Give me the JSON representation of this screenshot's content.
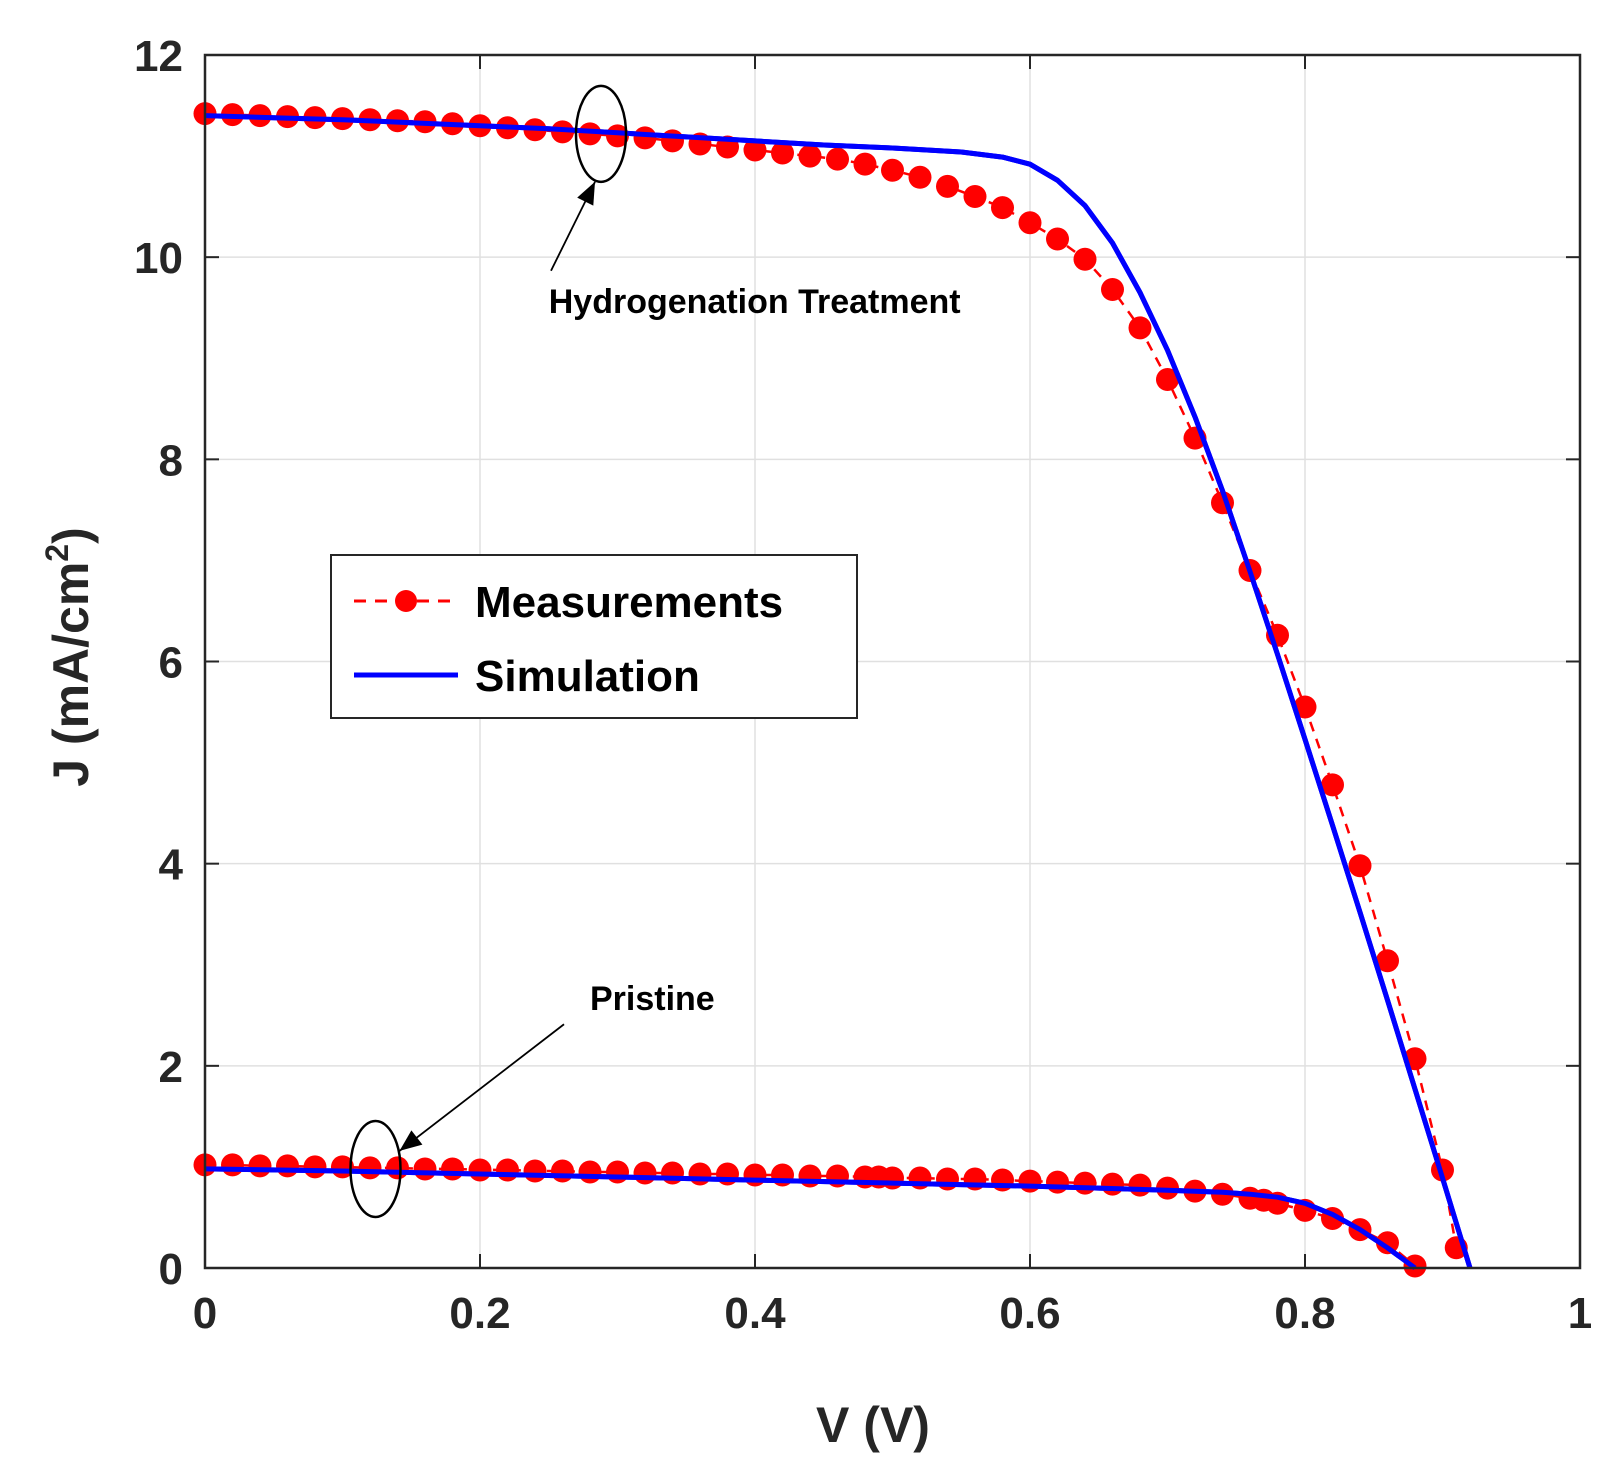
{
  "chart_data": {
    "type": "line",
    "title": "",
    "xlabel": "V (V)",
    "ylabel_main": "J (mA/cm",
    "ylabel_sup": "2",
    "ylabel_close": ")",
    "xlim": [
      0,
      1
    ],
    "ylim": [
      0,
      12
    ],
    "xticks": [
      0,
      0.2,
      0.4,
      0.6,
      0.8,
      1
    ],
    "xtick_labels": [
      "0",
      "0.2",
      "0.4",
      "0.6",
      "0.8",
      "1"
    ],
    "yticks": [
      0,
      2,
      4,
      6,
      8,
      10,
      12
    ],
    "ytick_labels": [
      "0",
      "2",
      "4",
      "6",
      "8",
      "10",
      "12"
    ],
    "grid": true,
    "legend": {
      "position": "center-left",
      "entries": [
        {
          "label": "Measurements",
          "style": "dashed-marker",
          "color": "#ff0000"
        },
        {
          "label": "Simulation",
          "style": "solid",
          "color": "#0000ff"
        }
      ]
    },
    "annotations": [
      {
        "text": "Hydrogenation Treatment",
        "ellipse_at": [
          0.288,
          11.22
        ],
        "label_at": [
          0.25,
          9.45
        ]
      },
      {
        "text": "Pristine",
        "ellipse_at": [
          0.124,
          0.98
        ],
        "label_at": [
          0.28,
          2.55
        ]
      }
    ],
    "colors": {
      "measurements": "#ff0000",
      "simulation": "#0000ff",
      "grid": "#e0e0e0",
      "axis": "#262626"
    },
    "series": [
      {
        "name": "Hydrogenation Treatment - Measurements",
        "x": [
          0,
          0.02,
          0.04,
          0.06,
          0.08,
          0.1,
          0.12,
          0.14,
          0.16,
          0.18,
          0.2,
          0.22,
          0.24,
          0.26,
          0.28,
          0.3,
          0.32,
          0.34,
          0.36,
          0.38,
          0.4,
          0.42,
          0.44,
          0.46,
          0.48,
          0.5,
          0.52,
          0.54,
          0.56,
          0.58,
          0.6,
          0.62,
          0.64,
          0.66,
          0.68,
          0.7,
          0.72,
          0.74,
          0.76,
          0.78,
          0.8,
          0.82,
          0.84,
          0.86,
          0.88,
          0.9,
          0.91
        ],
        "y": [
          11.42,
          11.41,
          11.4,
          11.39,
          11.38,
          11.37,
          11.36,
          11.35,
          11.34,
          11.32,
          11.3,
          11.28,
          11.26,
          11.24,
          11.22,
          11.2,
          11.18,
          11.15,
          11.12,
          11.09,
          11.06,
          11.03,
          11.0,
          10.97,
          10.92,
          10.86,
          10.79,
          10.7,
          10.6,
          10.49,
          10.34,
          10.18,
          9.98,
          9.68,
          9.3,
          8.79,
          8.21,
          7.57,
          6.9,
          6.26,
          5.55,
          4.78,
          3.98,
          3.04,
          2.07,
          0.97,
          0.2
        ]
      },
      {
        "name": "Hydrogenation Treatment - Simulation",
        "x": [
          0,
          0.05,
          0.1,
          0.15,
          0.2,
          0.25,
          0.3,
          0.35,
          0.4,
          0.45,
          0.5,
          0.55,
          0.58,
          0.6,
          0.62,
          0.64,
          0.66,
          0.68,
          0.7,
          0.72,
          0.74,
          0.76,
          0.78,
          0.8,
          0.82,
          0.84,
          0.86,
          0.88,
          0.9,
          0.92
        ],
        "y": [
          11.4,
          11.38,
          11.36,
          11.33,
          11.3,
          11.27,
          11.23,
          11.19,
          11.15,
          11.11,
          11.08,
          11.04,
          10.99,
          10.92,
          10.76,
          10.51,
          10.14,
          9.65,
          9.08,
          8.42,
          7.69,
          6.89,
          6.07,
          5.23,
          4.38,
          3.52,
          2.65,
          1.77,
          0.89,
          0.0
        ]
      },
      {
        "name": "Pristine - Measurements",
        "x": [
          0,
          0.02,
          0.04,
          0.06,
          0.08,
          0.1,
          0.12,
          0.14,
          0.16,
          0.18,
          0.2,
          0.22,
          0.24,
          0.26,
          0.28,
          0.3,
          0.32,
          0.34,
          0.36,
          0.38,
          0.4,
          0.42,
          0.44,
          0.46,
          0.48,
          0.49,
          0.5,
          0.52,
          0.54,
          0.56,
          0.58,
          0.6,
          0.62,
          0.64,
          0.66,
          0.68,
          0.7,
          0.72,
          0.74,
          0.76,
          0.77,
          0.78,
          0.8,
          0.82,
          0.84,
          0.86,
          0.88
        ],
        "y": [
          1.02,
          1.02,
          1.01,
          1.01,
          1.0,
          1.0,
          0.99,
          0.99,
          0.98,
          0.98,
          0.97,
          0.97,
          0.96,
          0.96,
          0.95,
          0.95,
          0.94,
          0.94,
          0.93,
          0.93,
          0.92,
          0.92,
          0.91,
          0.91,
          0.9,
          0.9,
          0.89,
          0.89,
          0.88,
          0.88,
          0.87,
          0.86,
          0.85,
          0.84,
          0.83,
          0.82,
          0.79,
          0.76,
          0.73,
          0.69,
          0.67,
          0.64,
          0.57,
          0.49,
          0.38,
          0.25,
          0.02
        ]
      },
      {
        "name": "Pristine - Simulation",
        "x": [
          0,
          0.1,
          0.2,
          0.3,
          0.4,
          0.5,
          0.6,
          0.65,
          0.7,
          0.74,
          0.76,
          0.78,
          0.8,
          0.82,
          0.84,
          0.86,
          0.87,
          0.88
        ],
        "y": [
          0.98,
          0.96,
          0.93,
          0.9,
          0.87,
          0.84,
          0.81,
          0.79,
          0.77,
          0.75,
          0.73,
          0.7,
          0.64,
          0.53,
          0.38,
          0.2,
          0.1,
          0.0
        ]
      }
    ]
  }
}
